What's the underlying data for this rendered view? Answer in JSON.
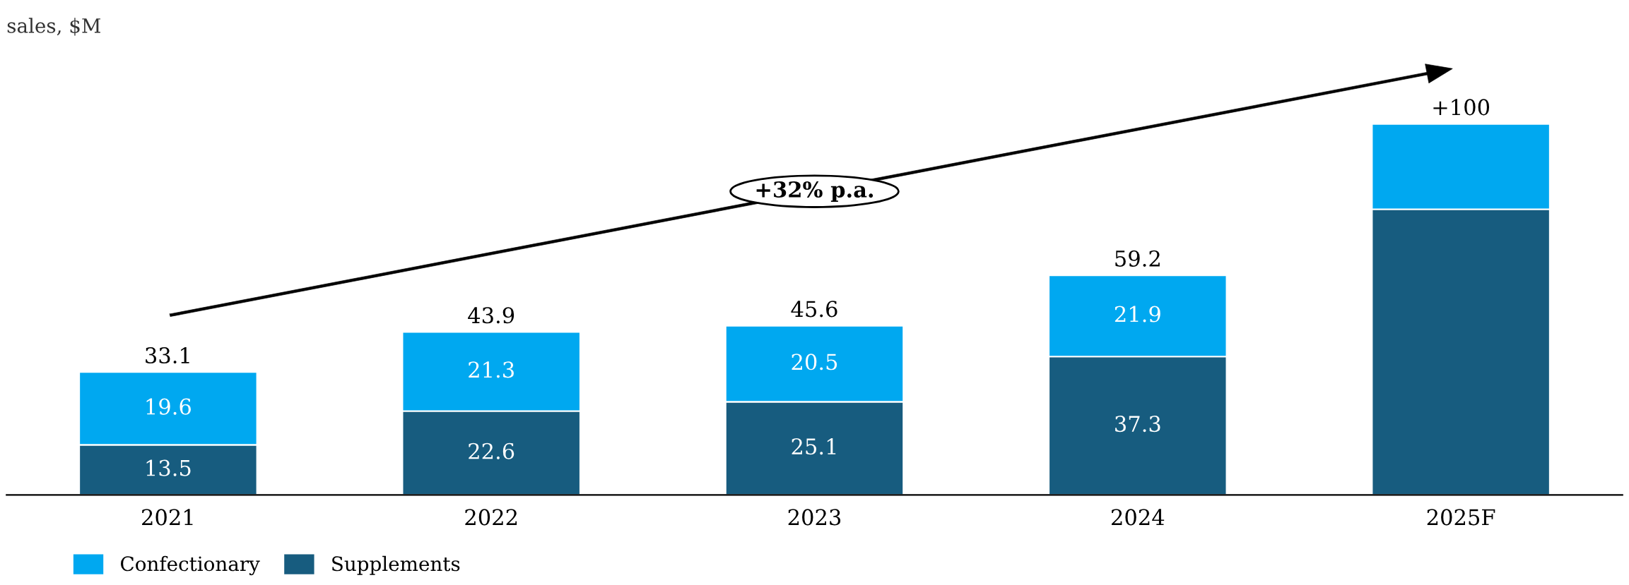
{
  "chart_data": {
    "type": "bar",
    "title": "sales, $M",
    "categories": [
      "2021",
      "2022",
      "2023",
      "2024",
      "2025F"
    ],
    "stacked": true,
    "series": [
      {
        "name": "Supplements",
        "color": "#175c7f",
        "values": [
          13.5,
          22.6,
          25.1,
          37.3,
          77
        ],
        "value_labels": [
          "13.5",
          "22.6",
          "25.1",
          "37.3",
          null
        ]
      },
      {
        "name": "Confectionary",
        "color": "#00a8f0",
        "values": [
          19.6,
          21.3,
          20.5,
          21.9,
          23
        ],
        "value_labels": [
          "19.6",
          "21.3",
          "20.5",
          "21.9",
          null
        ]
      }
    ],
    "totals": [
      "33.1",
      "43.9",
      "45.6",
      "59.2",
      "+100"
    ],
    "annotations": [
      "+32% p.a."
    ],
    "legend": "bottom left",
    "grid": false
  }
}
